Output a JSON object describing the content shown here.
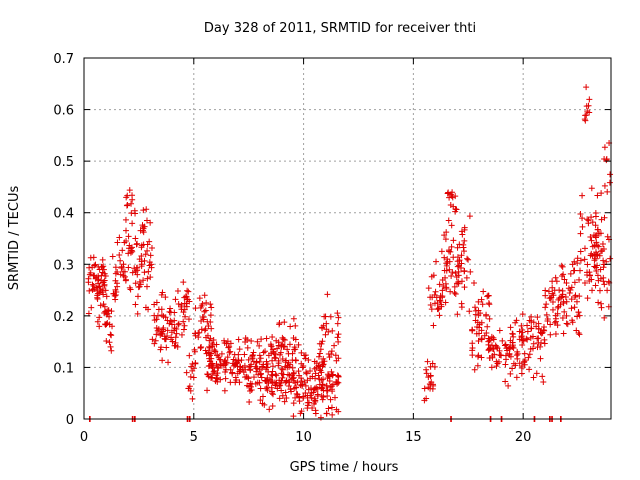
{
  "chart_data": {
    "type": "scatter",
    "title": "Day 328 of 2011, SRMTID for receiver thti",
    "xlabel": "GPS time / hours",
    "ylabel": "SRMTID / TECUs",
    "xlim": [
      0,
      24
    ],
    "ylim": [
      0,
      0.7
    ],
    "xticks": [
      0,
      5,
      10,
      15,
      20
    ],
    "yticks": [
      0,
      0.1,
      0.2,
      0.3,
      0.4,
      0.5,
      0.6,
      0.7
    ],
    "xtick_labels": [
      "0",
      "5",
      "10",
      "15",
      "20"
    ],
    "ytick_labels": [
      "0",
      "0.1",
      "0.2",
      "0.3",
      "0.4",
      "0.5",
      "0.6",
      "0.7"
    ],
    "grid": true,
    "marker": "+",
    "series_color": "#e00000",
    "segments": [
      {
        "x0": 0.2,
        "x1": 1.0,
        "mean": 0.27,
        "spread": 0.05,
        "count": 55
      },
      {
        "x0": 0.6,
        "x1": 1.3,
        "mean": 0.2,
        "spread": 0.05,
        "count": 30
      },
      {
        "x0": 1.3,
        "x1": 2.2,
        "mean": 0.29,
        "spread": 0.06,
        "count": 45
      },
      {
        "x0": 1.9,
        "x1": 2.2,
        "mean": 0.42,
        "spread": 0.03,
        "count": 10
      },
      {
        "x0": 2.2,
        "x1": 3.1,
        "mean": 0.3,
        "spread": 0.07,
        "count": 45
      },
      {
        "x0": 2.6,
        "x1": 3.1,
        "mean": 0.37,
        "spread": 0.04,
        "count": 14
      },
      {
        "x0": 3.1,
        "x1": 4.2,
        "mean": 0.18,
        "spread": 0.05,
        "count": 60
      },
      {
        "x0": 4.2,
        "x1": 4.8,
        "mean": 0.2,
        "spread": 0.06,
        "count": 30
      },
      {
        "x0": 4.6,
        "x1": 5.1,
        "mean": 0.08,
        "spread": 0.04,
        "count": 15
      },
      {
        "x0": 5.0,
        "x1": 5.8,
        "mean": 0.18,
        "spread": 0.05,
        "count": 40
      },
      {
        "x0": 5.6,
        "x1": 7.5,
        "mean": 0.11,
        "spread": 0.04,
        "count": 120
      },
      {
        "x0": 7.5,
        "x1": 9.5,
        "mean": 0.09,
        "spread": 0.045,
        "count": 140
      },
      {
        "x0": 8.5,
        "x1": 9.8,
        "mean": 0.15,
        "spread": 0.03,
        "count": 30
      },
      {
        "x0": 9.5,
        "x1": 11.6,
        "mean": 0.07,
        "spread": 0.05,
        "count": 150
      },
      {
        "x0": 10.8,
        "x1": 11.6,
        "mean": 0.18,
        "spread": 0.05,
        "count": 25
      },
      {
        "x0": 15.5,
        "x1": 16.0,
        "mean": 0.08,
        "spread": 0.04,
        "count": 20
      },
      {
        "x0": 15.7,
        "x1": 16.4,
        "mean": 0.24,
        "spread": 0.06,
        "count": 30
      },
      {
        "x0": 16.4,
        "x1": 17.6,
        "mean": 0.3,
        "spread": 0.07,
        "count": 70
      },
      {
        "x0": 16.5,
        "x1": 17.0,
        "mean": 0.42,
        "spread": 0.03,
        "count": 12
      },
      {
        "x0": 17.6,
        "x1": 18.5,
        "mean": 0.17,
        "spread": 0.06,
        "count": 50
      },
      {
        "x0": 18.4,
        "x1": 19.3,
        "mean": 0.13,
        "spread": 0.04,
        "count": 40
      },
      {
        "x0": 19.3,
        "x1": 21.0,
        "mean": 0.14,
        "spread": 0.05,
        "count": 90
      },
      {
        "x0": 21.0,
        "x1": 21.7,
        "mean": 0.22,
        "spread": 0.06,
        "count": 35
      },
      {
        "x0": 21.7,
        "x1": 22.6,
        "mean": 0.24,
        "spread": 0.06,
        "count": 50
      },
      {
        "x0": 22.6,
        "x1": 23.4,
        "mean": 0.33,
        "spread": 0.08,
        "count": 50
      },
      {
        "x0": 22.8,
        "x1": 23.1,
        "mean": 0.6,
        "spread": 0.03,
        "count": 10
      },
      {
        "x0": 23.3,
        "x1": 24.0,
        "mean": 0.3,
        "spread": 0.08,
        "count": 40
      },
      {
        "x0": 23.5,
        "x1": 24.0,
        "mean": 0.48,
        "spread": 0.05,
        "count": 10
      }
    ],
    "zero_points_x": [
      0.25,
      2.2,
      2.3,
      4.7,
      4.8,
      16.7,
      18.5,
      19.0,
      20.5,
      21.2,
      21.3,
      21.7
    ]
  }
}
